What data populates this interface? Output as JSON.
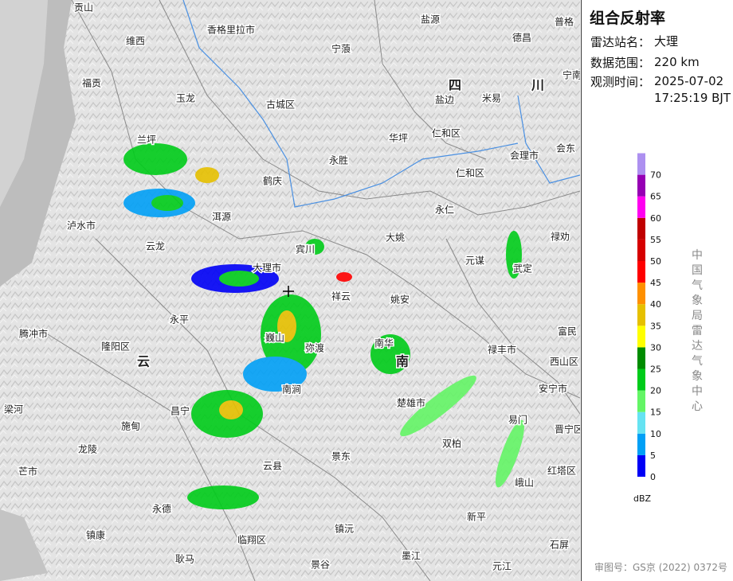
{
  "title": "组合反射率",
  "info": [
    {
      "label": "雷达站名：",
      "value": [
        "大理"
      ]
    },
    {
      "label": "数据范围：",
      "value": [
        "220 km"
      ]
    },
    {
      "label": "观测时间：",
      "value": [
        "2025-07-02",
        "17:25:19 BJT"
      ]
    }
  ],
  "legend": {
    "unit": "dBZ",
    "levels": [
      0,
      5,
      10,
      15,
      20,
      25,
      30,
      35,
      40,
      45,
      50,
      55,
      60,
      65,
      70
    ],
    "colors": [
      "#0000f6",
      "#01a0f6",
      "#66e3f2",
      "#64f566",
      "#00cc1a",
      "#008c00",
      "#ffff00",
      "#e6c000",
      "#ff9000",
      "#ff0000",
      "#d60000",
      "#c00000",
      "#ff00f0",
      "#9600b4",
      "#ad90f0"
    ]
  },
  "credit": "中国气象局雷达气象中心",
  "approval": "审图号：GS京 (2022) 0372号",
  "places": [
    "贡山",
    "维西",
    "香格里拉市",
    "宁蒗",
    "盐源",
    "普格",
    "德昌",
    "宁南",
    "福贡",
    "玉龙",
    "古城区",
    "四",
    "盐边",
    "米易",
    "川",
    "仁和区",
    "华坪",
    "兰坪",
    "会理市",
    "会东",
    "永胜",
    "仁和区",
    "鹤庆",
    "永仁",
    "泸水市",
    "洱源",
    "大姚",
    "禄劝",
    "云龙",
    "宾川",
    "元谋",
    "武定",
    "大理市",
    "祥云",
    "姚安",
    "永平",
    "南华",
    "腾冲市",
    "富民",
    "隆阳区",
    "巍山",
    "弥渡",
    "禄丰市",
    "云",
    "南",
    "西山区",
    "南涧",
    "安宁市",
    "楚雄市",
    "梁河",
    "昌宁",
    "施甸",
    "易门",
    "晋宁区",
    "龙陵",
    "双柏",
    "景东",
    "芒市",
    "云县",
    "红塔区",
    "峨山",
    "永德",
    "新平",
    "镇沅",
    "镇康",
    "临翔区",
    "石屏",
    "耿马",
    "墨江",
    "景谷",
    "元江"
  ]
}
